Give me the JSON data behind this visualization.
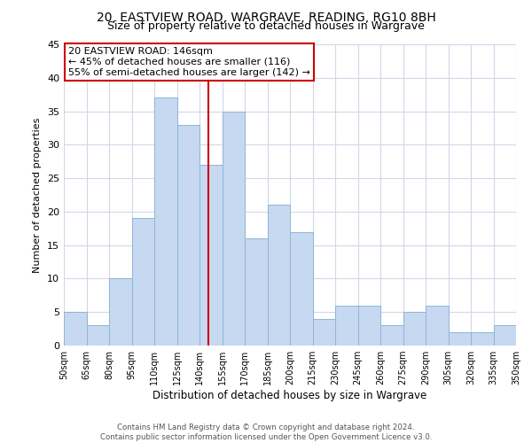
{
  "title1": "20, EASTVIEW ROAD, WARGRAVE, READING, RG10 8BH",
  "title2": "Size of property relative to detached houses in Wargrave",
  "xlabel": "Distribution of detached houses by size in Wargrave",
  "ylabel": "Number of detached properties",
  "bin_edges": [
    50,
    65,
    80,
    95,
    110,
    125,
    140,
    155,
    170,
    185,
    200,
    215,
    230,
    245,
    260,
    275,
    290,
    305,
    320,
    335,
    350
  ],
  "bar_heights": [
    5,
    3,
    10,
    19,
    37,
    33,
    27,
    35,
    16,
    21,
    17,
    4,
    6,
    6,
    3,
    5,
    6,
    2,
    2,
    3
  ],
  "bar_color": "#c6d9f1",
  "bar_edge_color": "#8fb4d9",
  "vline_x": 146,
  "vline_color": "#cc0000",
  "annotation_line1": "20 EASTVIEW ROAD: 146sqm",
  "annotation_line2": "← 45% of detached houses are smaller (116)",
  "annotation_line3": "55% of semi-detached houses are larger (142) →",
  "annotation_box_color": "#ffffff",
  "annotation_box_edge_color": "#cc0000",
  "ylim": [
    0,
    45
  ],
  "yticks": [
    0,
    5,
    10,
    15,
    20,
    25,
    30,
    35,
    40,
    45
  ],
  "tick_labels": [
    "50sqm",
    "65sqm",
    "80sqm",
    "95sqm",
    "110sqm",
    "125sqm",
    "140sqm",
    "155sqm",
    "170sqm",
    "185sqm",
    "200sqm",
    "215sqm",
    "230sqm",
    "245sqm",
    "260sqm",
    "275sqm",
    "290sqm",
    "305sqm",
    "320sqm",
    "335sqm",
    "350sqm"
  ],
  "footer1": "Contains HM Land Registry data © Crown copyright and database right 2024.",
  "footer2": "Contains public sector information licensed under the Open Government Licence v3.0.",
  "bg_color": "#ffffff",
  "grid_color": "#d0d8e8"
}
